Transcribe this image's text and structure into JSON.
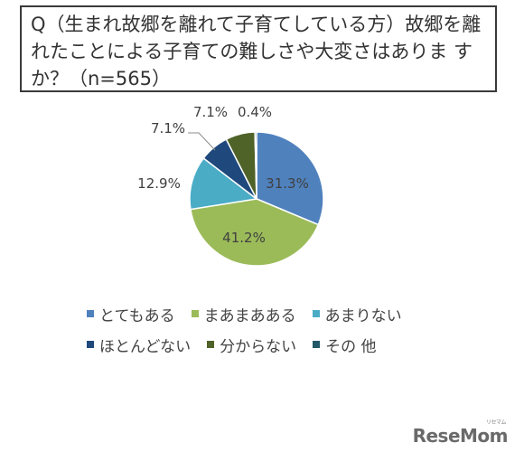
{
  "title": {
    "line1": "Q（生まれ故郷を離れて子育てしている方）故郷を離",
    "line2": "れたことによる子育ての難しさや大変さはありま す",
    "line3": "か？（n=565）"
  },
  "chart_data": {
    "type": "pie",
    "title": "Q（生まれ故郷を離れて子育てしている方）故郷を離れたことによる子育ての難しさや大変さはありますか？（n=565）",
    "slices": [
      {
        "label": "とてもある",
        "value": 31.3,
        "display": "31.3%",
        "color": "#4f81bd"
      },
      {
        "label": "まあまあある",
        "value": 41.2,
        "display": "41.2%",
        "color": "#9bbb59"
      },
      {
        "label": "あまりない",
        "value": 12.9,
        "display": "12.9%",
        "color": "#4bacc6"
      },
      {
        "label": "ほとんどない",
        "value": 7.1,
        "display": "7.1%",
        "color": "#1f497d"
      },
      {
        "label": "分からない",
        "value": 7.1,
        "display": "7.1%",
        "color": "#4f6228"
      },
      {
        "label": "その 他",
        "value": 0.4,
        "display": "0.4%",
        "color": "#215968"
      }
    ],
    "legend_position": "bottom"
  },
  "logo": {
    "text": "ReseMom",
    "small": "リセマム"
  }
}
